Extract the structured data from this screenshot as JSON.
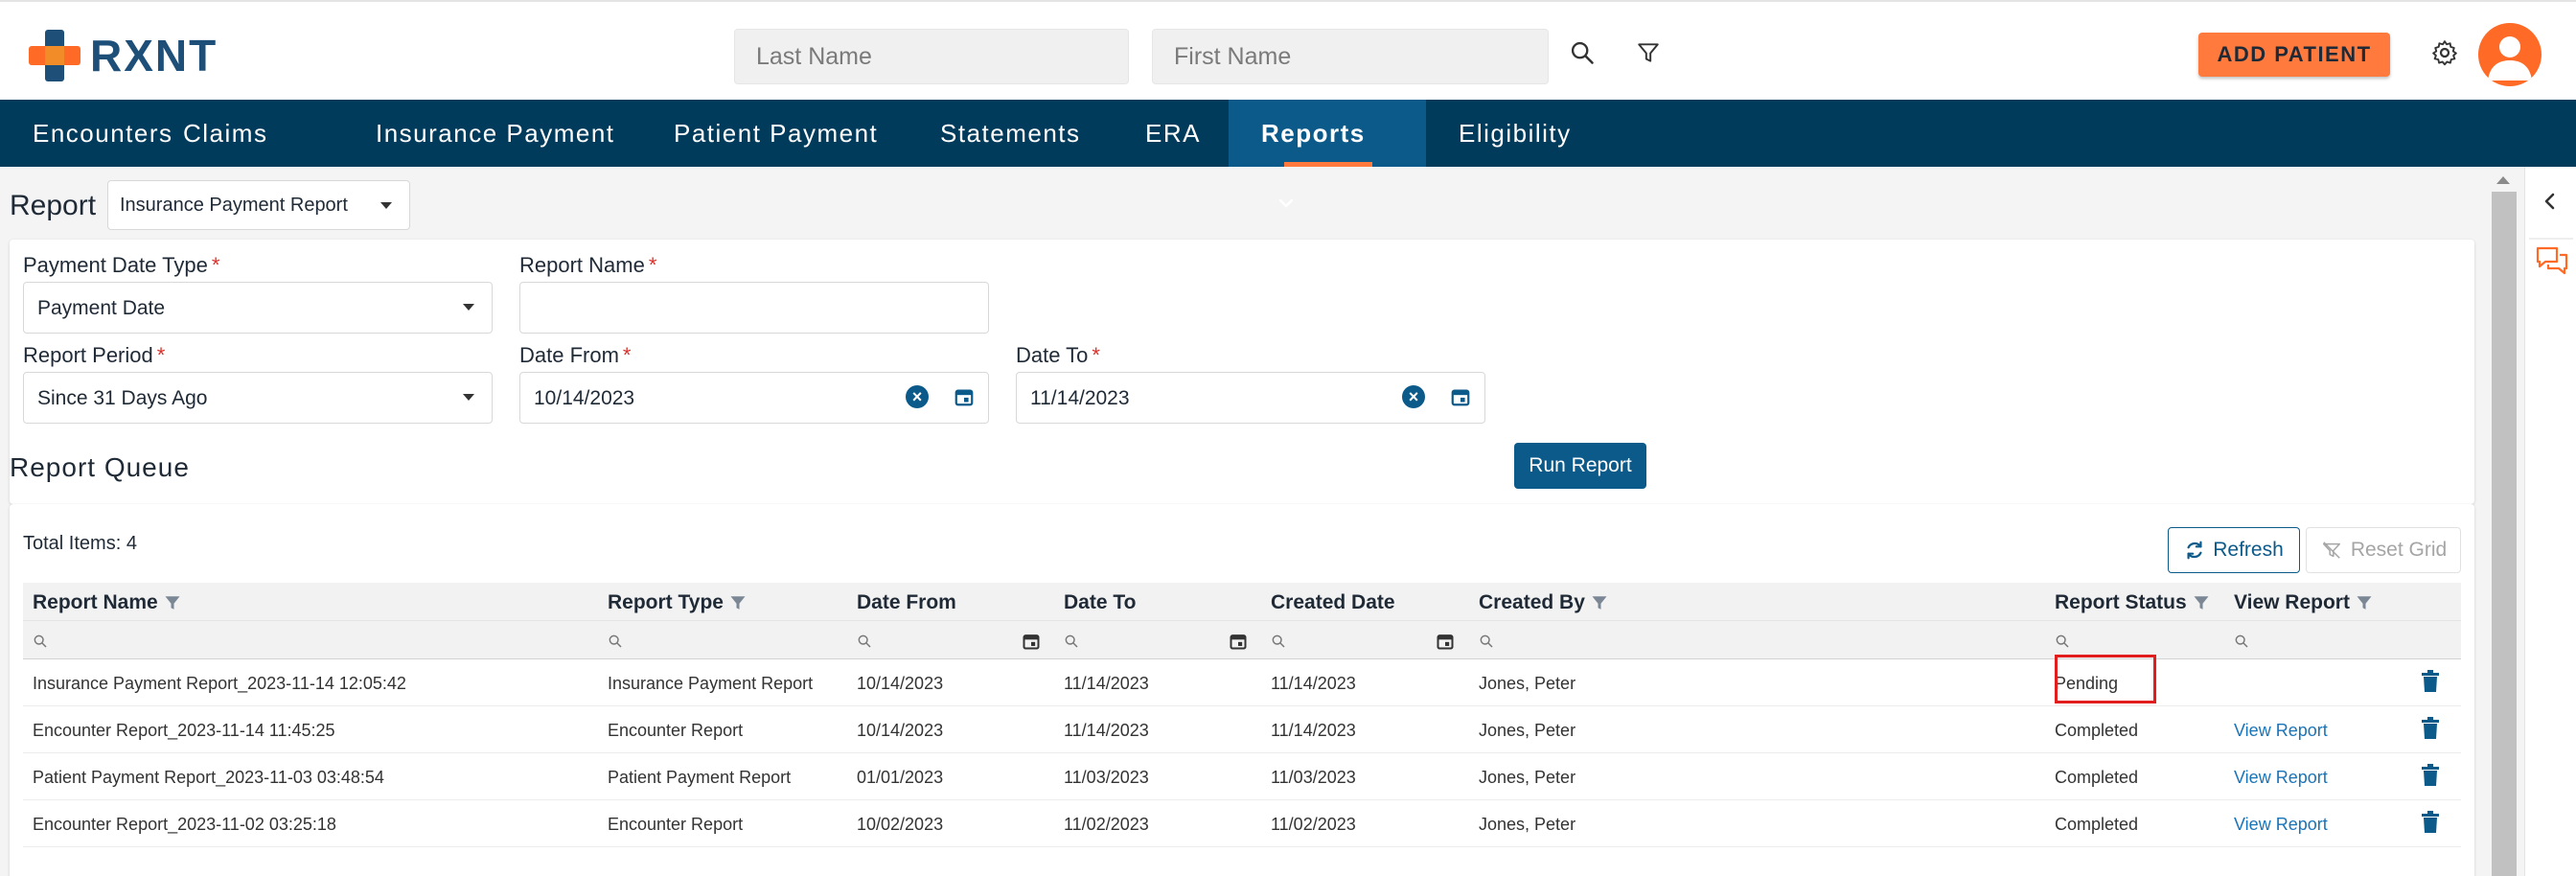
{
  "header": {
    "logo_text": "RXNT",
    "last_name_placeholder": "Last Name",
    "first_name_placeholder": "First Name",
    "add_patient_label": "ADD PATIENT"
  },
  "nav": {
    "items": [
      {
        "label": "Encounters"
      },
      {
        "label": "Claims"
      },
      {
        "label": "Insurance Payment"
      },
      {
        "label": "Patient Payment"
      },
      {
        "label": "Statements"
      },
      {
        "label": "ERA"
      },
      {
        "label": "Reports"
      },
      {
        "label": "Eligibility"
      }
    ],
    "active": "Reports"
  },
  "report": {
    "title": "Report",
    "selected_report": "Insurance Payment Report"
  },
  "form": {
    "payment_date_type_label": "Payment Date Type",
    "payment_date_type_value": "Payment Date",
    "report_name_label": "Report Name",
    "report_name_value": "",
    "report_period_label": "Report Period",
    "report_period_value": "Since 31 Days Ago",
    "date_from_label": "Date From",
    "date_from_value": "10/14/2023",
    "date_to_label": "Date To",
    "date_to_value": "11/14/2023",
    "required_mark": "*",
    "run_report_label": "Run Report"
  },
  "queue": {
    "title": "Report Queue",
    "total_items": "Total Items: 4",
    "refresh_label": "Refresh",
    "reset_grid_label": "Reset Grid",
    "columns": {
      "report_name": "Report Name",
      "report_type": "Report Type",
      "date_from": "Date From",
      "date_to": "Date To",
      "created_date": "Created Date",
      "created_by": "Created By",
      "report_status": "Report Status",
      "view_report": "View Report"
    },
    "rows": [
      {
        "report_name": "Insurance Payment Report_2023-11-14 12:05:42",
        "report_type": "Insurance Payment Report",
        "date_from": "10/14/2023",
        "date_to": "11/14/2023",
        "created_date": "11/14/2023",
        "created_by": "Jones, Peter",
        "report_status": "Pending",
        "view_report": ""
      },
      {
        "report_name": "Encounter Report_2023-11-14 11:45:25",
        "report_type": "Encounter Report",
        "date_from": "10/14/2023",
        "date_to": "11/14/2023",
        "created_date": "11/14/2023",
        "created_by": "Jones, Peter",
        "report_status": "Completed",
        "view_report": "View Report"
      },
      {
        "report_name": "Patient Payment Report_2023-11-03 03:48:54",
        "report_type": "Patient Payment Report",
        "date_from": "01/01/2023",
        "date_to": "11/03/2023",
        "created_date": "11/03/2023",
        "created_by": "Jones, Peter",
        "report_status": "Completed",
        "view_report": "View Report"
      },
      {
        "report_name": "Encounter Report_2023-11-02 03:25:18",
        "report_type": "Encounter Report",
        "date_from": "10/02/2023",
        "date_to": "11/02/2023",
        "created_date": "11/02/2023",
        "created_by": "Jones, Peter",
        "report_status": "Completed",
        "view_report": "View Report"
      }
    ]
  },
  "colors": {
    "navy": "#003b5c",
    "primary": "#0b5a8a",
    "accent": "#ff7a3c",
    "highlight": "#e11d1d"
  },
  "icons": [
    "search-icon",
    "filter-icon",
    "gear-icon",
    "user-icon",
    "chevron-down-icon",
    "calendar-icon",
    "clear-icon",
    "refresh-icon",
    "reset-filter-icon",
    "trash-icon",
    "collapse-icon",
    "chat-icon"
  ]
}
